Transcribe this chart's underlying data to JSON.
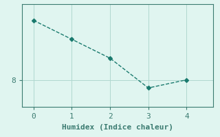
{
  "x": [
    0,
    1,
    2,
    3,
    4
  ],
  "y": [
    10.2,
    9.5,
    8.8,
    7.7,
    8.0
  ],
  "line_color": "#1a7a6e",
  "marker": "D",
  "marker_size": 3,
  "background_color": "#e0f5f0",
  "grid_color": "#b0d8d0",
  "xlabel": "Humidex (Indice chaleur)",
  "xlabel_fontsize": 8,
  "tick_fontsize": 8,
  "xlim": [
    -0.3,
    4.7
  ],
  "ylim": [
    7.0,
    10.8
  ],
  "yticks": [
    8
  ],
  "xticks": [
    0,
    1,
    2,
    3,
    4
  ],
  "spine_color": "#3a7a70",
  "line_width": 1.0,
  "line_style": "--"
}
